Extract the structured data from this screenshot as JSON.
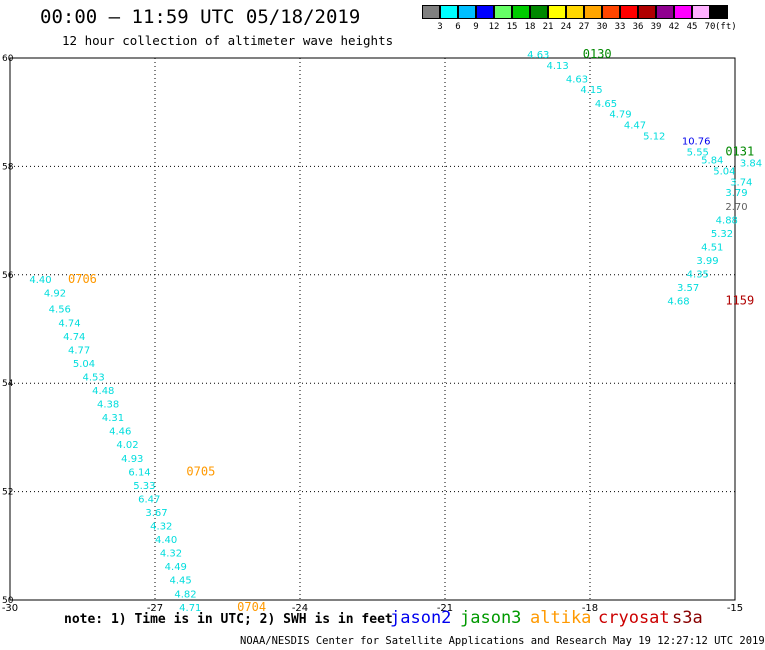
{
  "header": {
    "title": "00:00 — 11:59 UTC 05/18/2019",
    "subtitle": "12 hour collection of altimeter wave heights"
  },
  "colorbar": {
    "unit": "(ft)",
    "ticks": [
      "3",
      "6",
      "9",
      "12",
      "15",
      "18",
      "21",
      "24",
      "27",
      "30",
      "33",
      "36",
      "39",
      "42",
      "45",
      "70"
    ],
    "colors": [
      "#808080",
      "#00ffff",
      "#00bfff",
      "#0000ff",
      "#66ff66",
      "#00cc00",
      "#008800",
      "#ffff00",
      "#ffd700",
      "#ffa500",
      "#ff4500",
      "#ff0000",
      "#b00000",
      "#900090",
      "#ff00ff",
      "#ffb0ff",
      "#000000"
    ]
  },
  "map": {
    "lon_min": -30,
    "lon_max": -15,
    "lat_min": 50,
    "lat_max": 60,
    "x_ticks": [
      {
        "value": -30,
        "label": "-30"
      },
      {
        "value": -27,
        "label": "-27"
      },
      {
        "value": -24,
        "label": "-24"
      },
      {
        "value": -21,
        "label": "-21"
      },
      {
        "value": -18,
        "label": "-18"
      },
      {
        "value": -15,
        "label": "-15"
      }
    ],
    "y_ticks": [
      {
        "value": 50,
        "label": "50"
      },
      {
        "value": 52,
        "label": "52"
      },
      {
        "value": 54,
        "label": "54"
      },
      {
        "value": 56,
        "label": "56"
      },
      {
        "value": 58,
        "label": "58"
      },
      {
        "value": 60,
        "label": "60"
      }
    ],
    "wave_labels": [
      {
        "text": "4.40",
        "lon": -29.6,
        "lat": 55.85,
        "color": "#00dddd"
      },
      {
        "text": "4.92",
        "lon": -29.3,
        "lat": 55.6,
        "color": "#00dddd"
      },
      {
        "text": "4.56",
        "lon": -29.2,
        "lat": 55.3,
        "color": "#00dddd"
      },
      {
        "text": "4.74",
        "lon": -29.0,
        "lat": 55.05,
        "color": "#00dddd"
      },
      {
        "text": "4.74",
        "lon": -28.9,
        "lat": 54.8,
        "color": "#00dddd"
      },
      {
        "text": "4.77",
        "lon": -28.8,
        "lat": 54.55,
        "color": "#00dddd"
      },
      {
        "text": "5.04",
        "lon": -28.7,
        "lat": 54.3,
        "color": "#00dddd"
      },
      {
        "text": "4.53",
        "lon": -28.5,
        "lat": 54.05,
        "color": "#00dddd"
      },
      {
        "text": "4.48",
        "lon": -28.3,
        "lat": 53.8,
        "color": "#00dddd"
      },
      {
        "text": "4.38",
        "lon": -28.2,
        "lat": 53.55,
        "color": "#00dddd"
      },
      {
        "text": "4.31",
        "lon": -28.1,
        "lat": 53.3,
        "color": "#00dddd"
      },
      {
        "text": "4.46",
        "lon": -27.95,
        "lat": 53.05,
        "color": "#00dddd"
      },
      {
        "text": "4.02",
        "lon": -27.8,
        "lat": 52.8,
        "color": "#00dddd"
      },
      {
        "text": "4.93",
        "lon": -27.7,
        "lat": 52.55,
        "color": "#00dddd"
      },
      {
        "text": "6.14",
        "lon": -27.55,
        "lat": 52.3,
        "color": "#00dddd"
      },
      {
        "text": "5.33",
        "lon": -27.45,
        "lat": 52.05,
        "color": "#00dddd"
      },
      {
        "text": "6.47",
        "lon": -27.35,
        "lat": 51.8,
        "color": "#00dddd"
      },
      {
        "text": "3.67",
        "lon": -27.2,
        "lat": 51.55,
        "color": "#00dddd"
      },
      {
        "text": "4.32",
        "lon": -27.1,
        "lat": 51.3,
        "color": "#00dddd"
      },
      {
        "text": "4.40",
        "lon": -27.0,
        "lat": 51.05,
        "color": "#00dddd"
      },
      {
        "text": "4.32",
        "lon": -26.9,
        "lat": 50.8,
        "color": "#00dddd"
      },
      {
        "text": "4.49",
        "lon": -26.8,
        "lat": 50.55,
        "color": "#00dddd"
      },
      {
        "text": "4.45",
        "lon": -26.7,
        "lat": 50.3,
        "color": "#00dddd"
      },
      {
        "text": "4.82",
        "lon": -26.6,
        "lat": 50.05,
        "color": "#00dddd"
      },
      {
        "text": "4.71",
        "lon": -26.5,
        "lat": 49.8,
        "color": "#00dddd"
      },
      {
        "text": "4.63",
        "lon": -19.3,
        "lat": 60.0,
        "color": "#00dddd"
      },
      {
        "text": "4.13",
        "lon": -18.9,
        "lat": 59.8,
        "color": "#00dddd"
      },
      {
        "text": "4.63",
        "lon": -18.5,
        "lat": 59.55,
        "color": "#00dddd"
      },
      {
        "text": "4.15",
        "lon": -18.2,
        "lat": 59.35,
        "color": "#00dddd"
      },
      {
        "text": "4.65",
        "lon": -17.9,
        "lat": 59.1,
        "color": "#00dddd"
      },
      {
        "text": "4.79",
        "lon": -17.6,
        "lat": 58.9,
        "color": "#00dddd"
      },
      {
        "text": "4.47",
        "lon": -17.3,
        "lat": 58.7,
        "color": "#00dddd"
      },
      {
        "text": "5.12",
        "lon": -16.9,
        "lat": 58.5,
        "color": "#00dddd"
      },
      {
        "text": "10.76",
        "lon": -16.1,
        "lat": 58.4,
        "color": "#0000ee"
      },
      {
        "text": "5.55",
        "lon": -16.0,
        "lat": 58.2,
        "color": "#00dddd"
      },
      {
        "text": "5.84",
        "lon": -15.7,
        "lat": 58.05,
        "color": "#00dddd"
      },
      {
        "text": "5.04",
        "lon": -15.45,
        "lat": 57.85,
        "color": "#00dddd"
      },
      {
        "text": "3.84",
        "lon": -14.9,
        "lat": 58.0,
        "color": "#00dddd"
      },
      {
        "text": "3.74",
        "lon": -15.1,
        "lat": 57.65,
        "color": "#00dddd"
      },
      {
        "text": "3.79",
        "lon": -15.2,
        "lat": 57.45,
        "color": "#00dddd"
      },
      {
        "text": "2.70",
        "lon": -15.2,
        "lat": 57.2,
        "color": "#606060"
      },
      {
        "text": "4.88",
        "lon": -15.4,
        "lat": 56.95,
        "color": "#00dddd"
      },
      {
        "text": "5.32",
        "lon": -15.5,
        "lat": 56.7,
        "color": "#00dddd"
      },
      {
        "text": "4.51",
        "lon": -15.7,
        "lat": 56.45,
        "color": "#00dddd"
      },
      {
        "text": "3.99",
        "lon": -15.8,
        "lat": 56.2,
        "color": "#00dddd"
      },
      {
        "text": "4.35",
        "lon": -16.0,
        "lat": 55.95,
        "color": "#00dddd"
      },
      {
        "text": "3.57",
        "lon": -16.2,
        "lat": 55.7,
        "color": "#00dddd"
      },
      {
        "text": "4.68",
        "lon": -16.4,
        "lat": 55.45,
        "color": "#00dddd"
      }
    ],
    "time_labels": [
      {
        "text": "0706",
        "lon": -28.8,
        "lat": 55.85,
        "color": "#ff9900"
      },
      {
        "text": "0705",
        "lon": -26.35,
        "lat": 52.3,
        "color": "#ff9900"
      },
      {
        "text": "0704",
        "lon": -25.3,
        "lat": 49.8,
        "color": "#ff9900"
      },
      {
        "text": "0130",
        "lon": -18.15,
        "lat": 60.0,
        "color": "#008800"
      },
      {
        "text": "0131",
        "lon": -15.2,
        "lat": 58.2,
        "color": "#008800"
      },
      {
        "text": "1159",
        "lon": -15.2,
        "lat": 55.45,
        "color": "#b00000"
      }
    ]
  },
  "note": "note: 1) Time is in UTC; 2) SWH is in feet",
  "satellites": [
    {
      "name": "jason2",
      "color": "#0000ee"
    },
    {
      "name": "jason3",
      "color": "#009900"
    },
    {
      "name": "altika",
      "color": "#ff9900"
    },
    {
      "name": "cryosat",
      "color": "#cc0000"
    },
    {
      "name": "s3a",
      "color": "#880000"
    }
  ],
  "credit": "NOAA/NESDIS Center for Satellite Applications and Research   May 19 12:27:12 UTC 2019"
}
